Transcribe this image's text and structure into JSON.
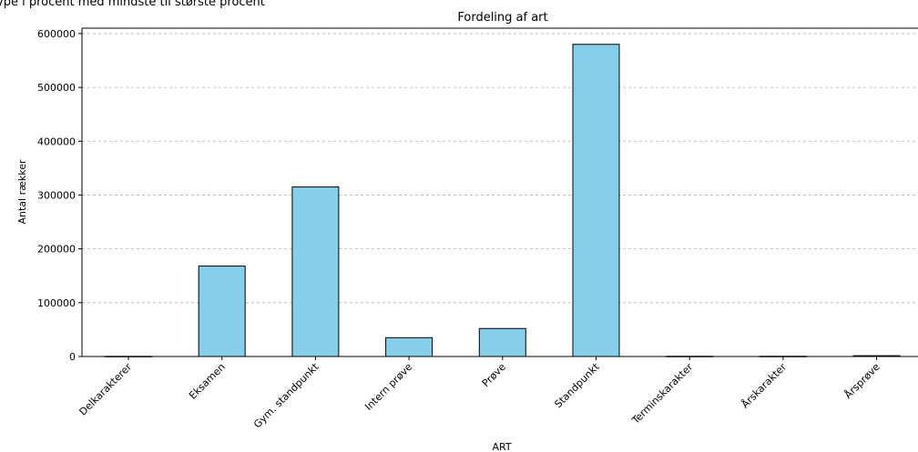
{
  "chart_data": {
    "type": "bar",
    "title": "Fordeling af art",
    "xlabel": "ART",
    "ylabel": "Antal rækker",
    "categories": [
      "Delkarakterer",
      "Eksamen",
      "Gym. standpunkt",
      "Intern prøve",
      "Prøve",
      "Standpunkt",
      "Terminskarakter",
      "Årskarakter",
      "Årsprøve"
    ],
    "values": [
      300,
      168000,
      315000,
      35000,
      52000,
      580000,
      400,
      400,
      1500
    ],
    "ylim": [
      0,
      610000
    ],
    "yticks": [
      0,
      100000,
      200000,
      300000,
      400000,
      500000,
      600000
    ],
    "grid": "y",
    "bar_color": "#87ceeb",
    "edge_color": "#000000"
  },
  "header_fragment": "ype i procent med mindste til største procent"
}
